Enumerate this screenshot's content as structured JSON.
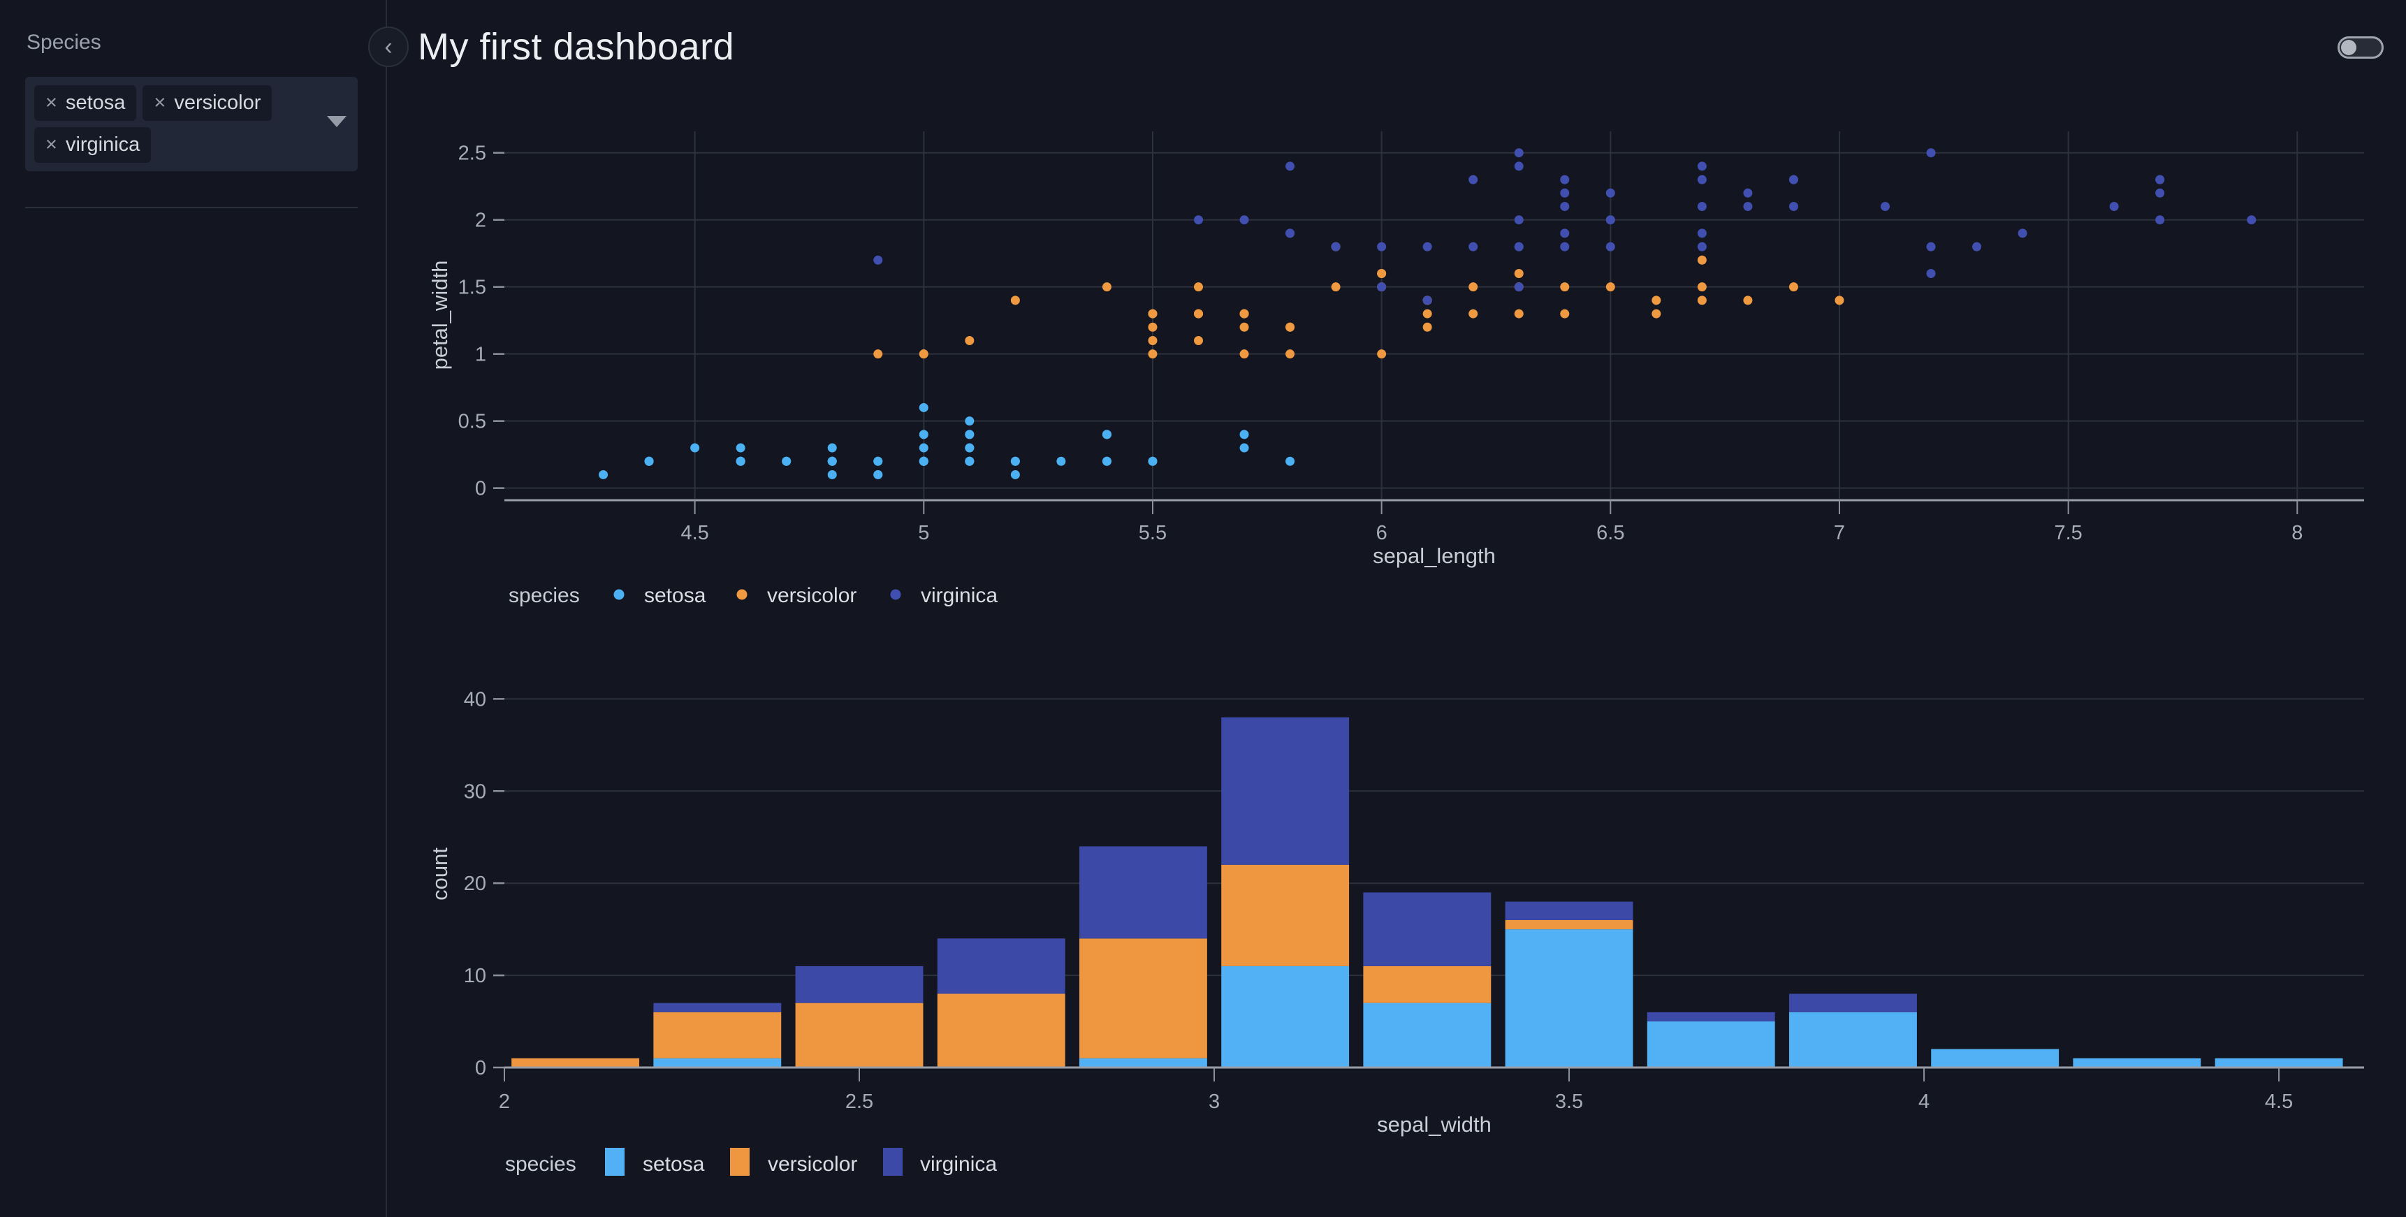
{
  "header": {
    "title": "My first dashboard",
    "collapse_glyph": "‹",
    "theme_toggle_state": "off"
  },
  "sidebar": {
    "filter_label": "Species",
    "remove_glyph": "×",
    "selected_tags": [
      "setosa",
      "versicolor",
      "virginica"
    ]
  },
  "colors": {
    "background": "#131621",
    "gridline": "#2c313c",
    "axis_line": "#999da6",
    "tick_text": "#a7acb6",
    "axis_title_text": "#c9ced6",
    "legend_text": "#dadde2"
  },
  "chart_data": [
    {
      "type": "scatter",
      "xlabel": "sepal_length",
      "ylabel": "petal_width",
      "legend_title": "species",
      "legend_position": "bottom-left",
      "grid": true,
      "xlim": [
        4.084,
        8.146
      ],
      "ylim": [
        -0.08,
        2.66
      ],
      "x_ticks": [
        "4.5",
        "5",
        "5.5",
        "6",
        "6.5",
        "7",
        "7.5",
        "8"
      ],
      "x_tick_values": [
        4.5,
        5,
        5.5,
        6,
        6.5,
        7,
        7.5,
        8
      ],
      "y_ticks": [
        "0",
        "0.5",
        "1",
        "1.5",
        "2",
        "2.5"
      ],
      "y_tick_values": [
        0,
        0.5,
        1,
        1.5,
        2,
        2.5
      ],
      "series": [
        {
          "name": "setosa",
          "color": "#4cb1f2",
          "points": [
            [
              5.1,
              0.2
            ],
            [
              4.9,
              0.2
            ],
            [
              4.7,
              0.2
            ],
            [
              4.6,
              0.2
            ],
            [
              5.0,
              0.2
            ],
            [
              5.4,
              0.4
            ],
            [
              4.6,
              0.3
            ],
            [
              5.0,
              0.2
            ],
            [
              4.4,
              0.2
            ],
            [
              4.9,
              0.1
            ],
            [
              5.4,
              0.2
            ],
            [
              4.8,
              0.2
            ],
            [
              4.8,
              0.1
            ],
            [
              4.3,
              0.1
            ],
            [
              5.8,
              0.2
            ],
            [
              5.7,
              0.4
            ],
            [
              5.4,
              0.4
            ],
            [
              5.1,
              0.3
            ],
            [
              5.7,
              0.3
            ],
            [
              5.1,
              0.3
            ],
            [
              5.4,
              0.2
            ],
            [
              5.1,
              0.4
            ],
            [
              4.6,
              0.2
            ],
            [
              5.1,
              0.5
            ],
            [
              4.8,
              0.2
            ],
            [
              5.0,
              0.2
            ],
            [
              5.0,
              0.4
            ],
            [
              5.2,
              0.2
            ],
            [
              5.2,
              0.2
            ],
            [
              4.7,
              0.2
            ],
            [
              4.8,
              0.2
            ],
            [
              5.4,
              0.4
            ],
            [
              5.2,
              0.1
            ],
            [
              5.5,
              0.2
            ],
            [
              4.9,
              0.2
            ],
            [
              5.0,
              0.2
            ],
            [
              5.5,
              0.2
            ],
            [
              4.9,
              0.1
            ],
            [
              4.4,
              0.2
            ],
            [
              5.1,
              0.2
            ],
            [
              5.0,
              0.3
            ],
            [
              4.5,
              0.3
            ],
            [
              4.4,
              0.2
            ],
            [
              5.0,
              0.6
            ],
            [
              5.1,
              0.4
            ],
            [
              4.8,
              0.3
            ],
            [
              5.1,
              0.2
            ],
            [
              4.6,
              0.2
            ],
            [
              5.3,
              0.2
            ],
            [
              5.0,
              0.2
            ]
          ]
        },
        {
          "name": "versicolor",
          "color": "#ef9941",
          "points": [
            [
              7.0,
              1.4
            ],
            [
              6.4,
              1.5
            ],
            [
              6.9,
              1.5
            ],
            [
              5.5,
              1.3
            ],
            [
              6.5,
              1.5
            ],
            [
              5.7,
              1.3
            ],
            [
              6.3,
              1.6
            ],
            [
              4.9,
              1.0
            ],
            [
              6.6,
              1.3
            ],
            [
              5.2,
              1.4
            ],
            [
              5.0,
              1.0
            ],
            [
              5.9,
              1.5
            ],
            [
              6.0,
              1.0
            ],
            [
              6.1,
              1.4
            ],
            [
              5.6,
              1.3
            ],
            [
              6.7,
              1.4
            ],
            [
              5.6,
              1.5
            ],
            [
              5.8,
              1.0
            ],
            [
              6.2,
              1.5
            ],
            [
              5.6,
              1.1
            ],
            [
              5.9,
              1.8
            ],
            [
              6.1,
              1.3
            ],
            [
              6.3,
              1.5
            ],
            [
              6.1,
              1.2
            ],
            [
              6.4,
              1.3
            ],
            [
              6.6,
              1.4
            ],
            [
              6.8,
              1.4
            ],
            [
              6.7,
              1.7
            ],
            [
              6.0,
              1.5
            ],
            [
              5.7,
              1.0
            ],
            [
              5.5,
              1.1
            ],
            [
              5.5,
              1.0
            ],
            [
              5.8,
              1.2
            ],
            [
              6.0,
              1.6
            ],
            [
              5.4,
              1.5
            ],
            [
              6.0,
              1.6
            ],
            [
              6.7,
              1.5
            ],
            [
              6.3,
              1.3
            ],
            [
              5.6,
              1.3
            ],
            [
              5.5,
              1.3
            ],
            [
              5.5,
              1.2
            ],
            [
              6.1,
              1.4
            ],
            [
              5.8,
              1.2
            ],
            [
              5.0,
              1.0
            ],
            [
              5.6,
              1.3
            ],
            [
              5.7,
              1.2
            ],
            [
              5.7,
              1.3
            ],
            [
              6.2,
              1.3
            ],
            [
              5.1,
              1.1
            ],
            [
              5.7,
              1.3
            ]
          ]
        },
        {
          "name": "virginica",
          "color": "#4150b0",
          "points": [
            [
              6.3,
              2.5
            ],
            [
              5.8,
              1.9
            ],
            [
              7.1,
              2.1
            ],
            [
              6.3,
              1.8
            ],
            [
              6.5,
              2.2
            ],
            [
              7.6,
              2.1
            ],
            [
              4.9,
              1.7
            ],
            [
              7.3,
              1.8
            ],
            [
              6.7,
              1.8
            ],
            [
              7.2,
              2.5
            ],
            [
              6.5,
              2.0
            ],
            [
              6.4,
              1.9
            ],
            [
              6.8,
              2.1
            ],
            [
              5.7,
              2.0
            ],
            [
              5.8,
              2.4
            ],
            [
              6.4,
              2.3
            ],
            [
              6.5,
              1.8
            ],
            [
              7.7,
              2.2
            ],
            [
              7.7,
              2.3
            ],
            [
              6.0,
              1.5
            ],
            [
              6.9,
              2.3
            ],
            [
              5.6,
              2.0
            ],
            [
              7.7,
              2.0
            ],
            [
              6.3,
              1.8
            ],
            [
              6.7,
              2.1
            ],
            [
              7.2,
              1.8
            ],
            [
              6.2,
              1.8
            ],
            [
              6.1,
              1.8
            ],
            [
              6.4,
              2.1
            ],
            [
              7.2,
              1.6
            ],
            [
              7.4,
              1.9
            ],
            [
              7.9,
              2.0
            ],
            [
              6.4,
              2.2
            ],
            [
              6.3,
              1.5
            ],
            [
              6.1,
              1.4
            ],
            [
              7.7,
              2.3
            ],
            [
              6.3,
              2.4
            ],
            [
              6.4,
              1.8
            ],
            [
              6.0,
              1.8
            ],
            [
              6.9,
              2.1
            ],
            [
              6.7,
              2.4
            ],
            [
              6.9,
              2.3
            ],
            [
              5.8,
              1.9
            ],
            [
              6.8,
              2.2
            ],
            [
              6.7,
              2.3
            ],
            [
              6.7,
              1.9
            ],
            [
              6.3,
              2.0
            ],
            [
              6.5,
              2.0
            ],
            [
              6.2,
              2.3
            ],
            [
              5.9,
              1.8
            ]
          ]
        }
      ]
    },
    {
      "type": "bar",
      "stacked": true,
      "xlabel": "sepal_width",
      "ylabel": "count",
      "legend_title": "species",
      "legend_position": "bottom-left",
      "grid": true,
      "xlim": [
        2.0,
        4.62
      ],
      "ylim": [
        0,
        42
      ],
      "x_ticks": [
        "2",
        "2.5",
        "3",
        "3.5",
        "4",
        "4.5"
      ],
      "x_tick_values": [
        2,
        2.5,
        3,
        3.5,
        4,
        4.5
      ],
      "y_ticks": [
        "0",
        "10",
        "20",
        "30",
        "40"
      ],
      "y_tick_values": [
        0,
        10,
        20,
        30,
        40
      ],
      "bins": {
        "start": 2.0,
        "size": 0.2,
        "count": 13
      },
      "bin_starts": [
        2.0,
        2.2,
        2.4,
        2.6,
        2.8,
        3.0,
        3.2,
        3.4,
        3.6,
        3.8,
        4.0,
        4.2,
        4.4
      ],
      "series": [
        {
          "name": "setosa",
          "color": "#52b1f5",
          "values": [
            0,
            1,
            0,
            0,
            1,
            11,
            7,
            15,
            5,
            6,
            2,
            1,
            1
          ]
        },
        {
          "name": "versicolor",
          "color": "#ee9740",
          "values": [
            1,
            5,
            7,
            8,
            13,
            11,
            4,
            1,
            0,
            0,
            0,
            0,
            0
          ]
        },
        {
          "name": "virginica",
          "color": "#3c49a6",
          "values": [
            0,
            1,
            4,
            6,
            10,
            16,
            8,
            2,
            1,
            2,
            0,
            0,
            0
          ]
        }
      ]
    }
  ]
}
